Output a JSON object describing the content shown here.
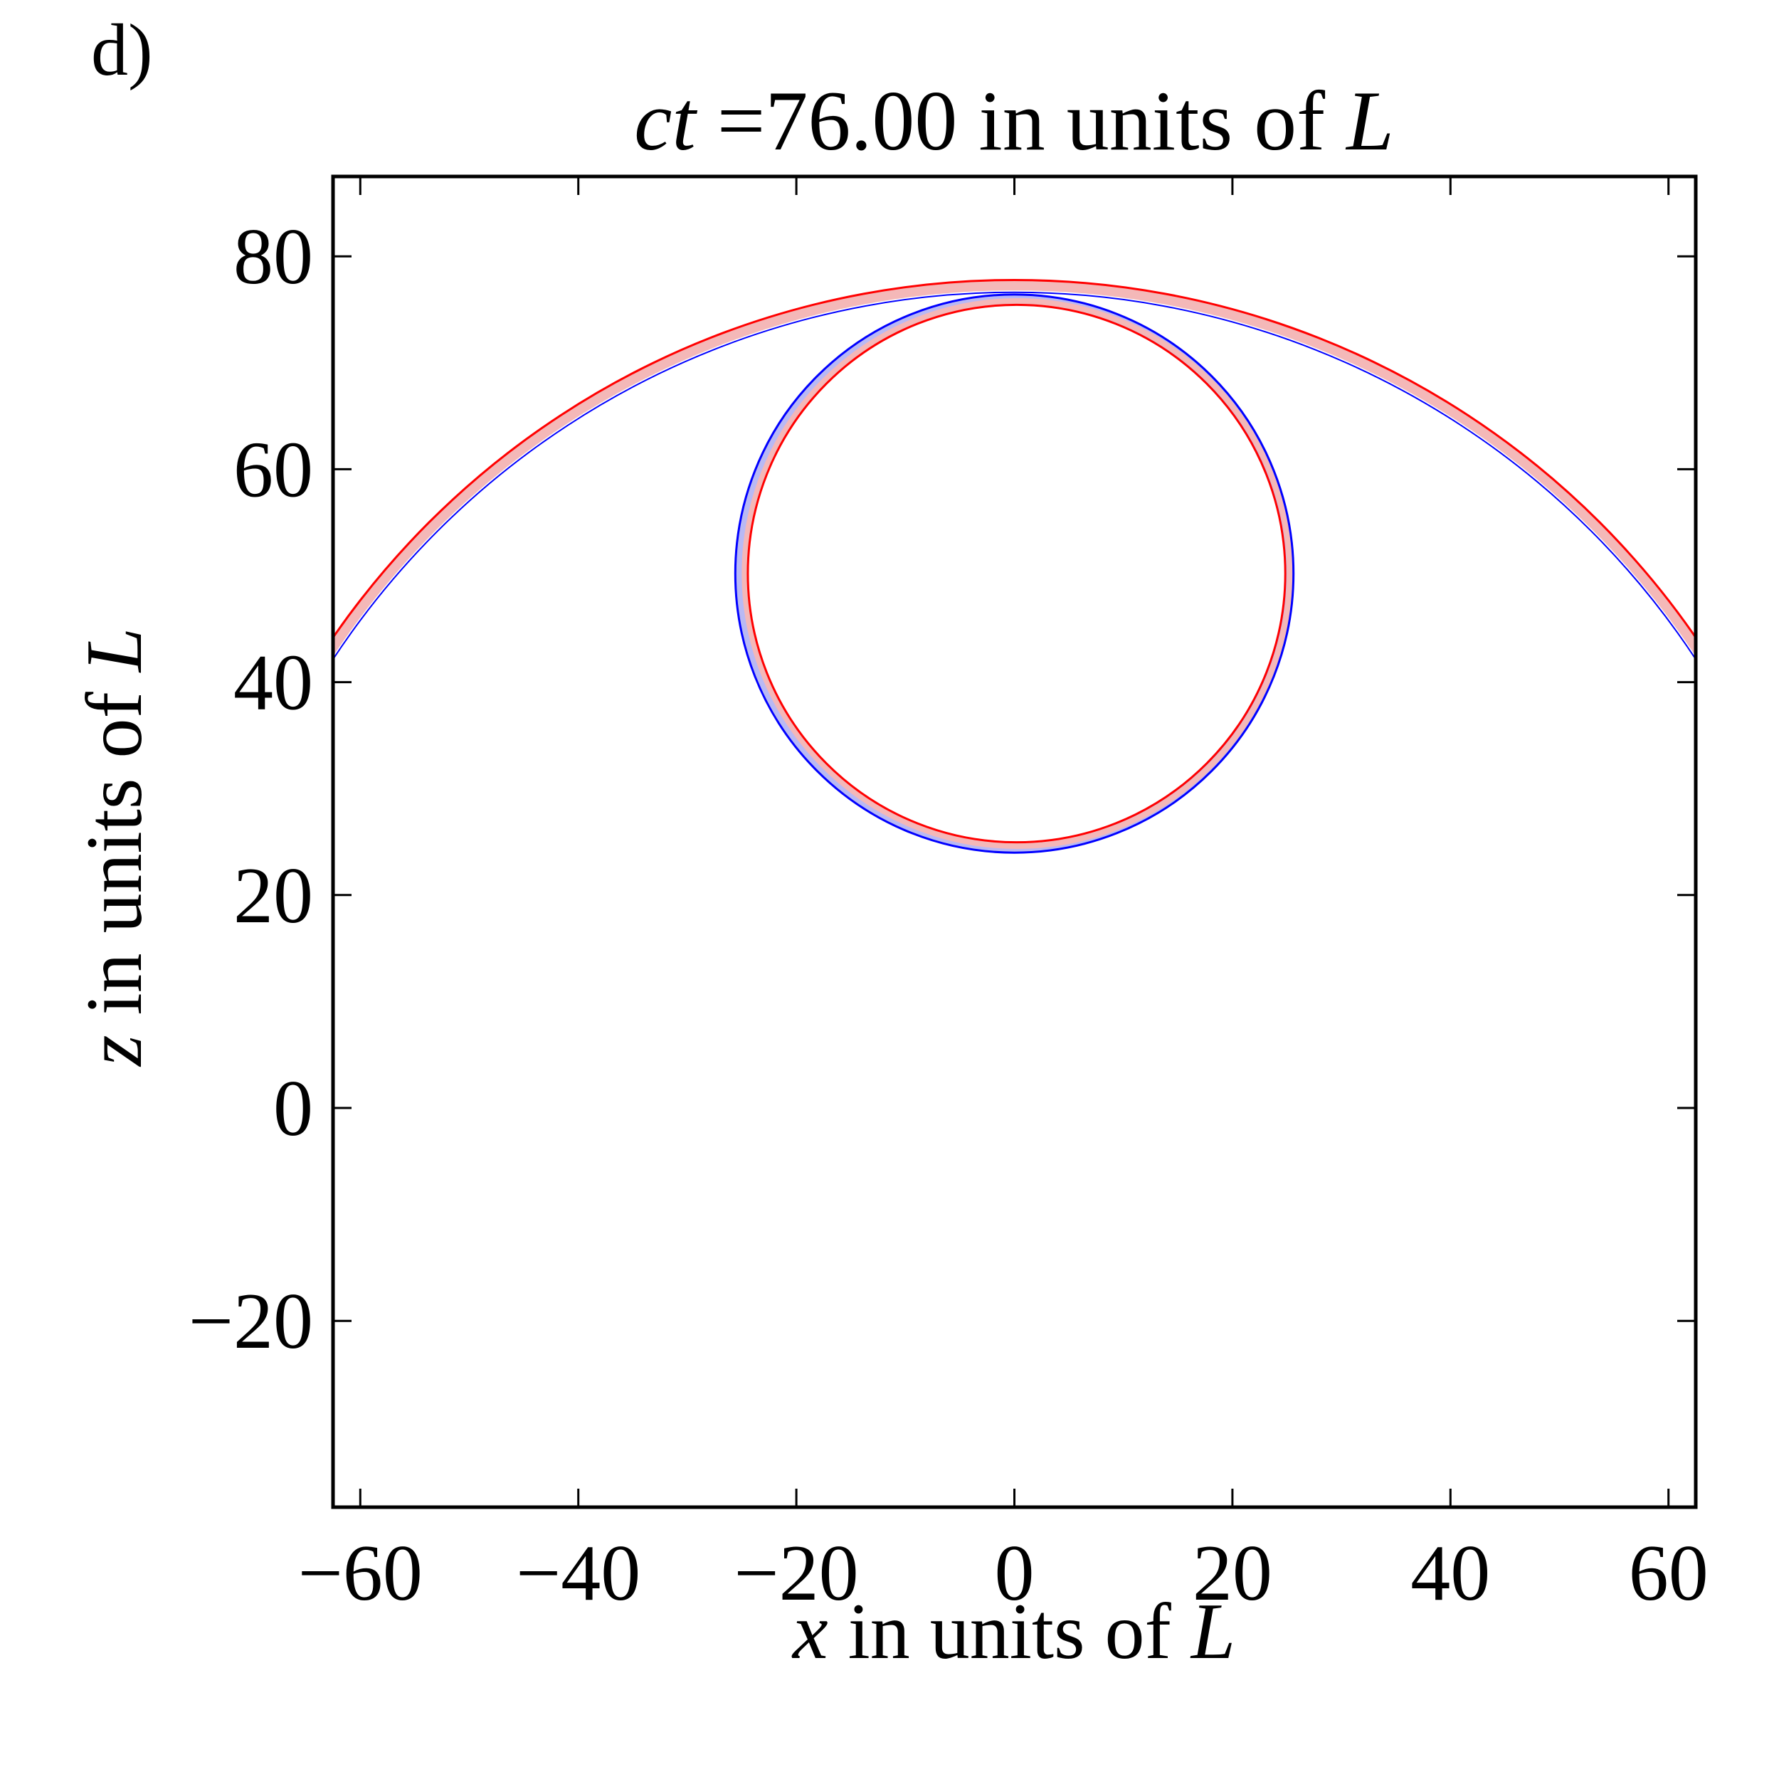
{
  "panel_label": "d)",
  "chart_data": {
    "type": "line",
    "title": {
      "var": "ct",
      "rest": " =76.00 in units of ",
      "unit": "L"
    },
    "xlabel": {
      "var": "x",
      "rest": " in units of ",
      "unit": "L"
    },
    "ylabel": {
      "var": "z",
      "rest": " in units of ",
      "unit": "L"
    },
    "xlim": [
      -62.5,
      62.5
    ],
    "ylim": [
      -37.5,
      87.5
    ],
    "xticks": [
      -60,
      -40,
      -20,
      0,
      20,
      40,
      60
    ],
    "yticks": [
      -20,
      0,
      20,
      40,
      60,
      80
    ],
    "xtick_labels": [
      "−60",
      "−40",
      "−20",
      "0",
      "20",
      "40",
      "60"
    ],
    "ytick_labels": [
      "−20",
      "0",
      "20",
      "40",
      "60",
      "80"
    ],
    "grid": false,
    "colors": {
      "red": "#ff0000",
      "blue": "#0000ff",
      "light_red": "#f4b8b8",
      "light_blue": "#b9b9f4"
    },
    "shapes": [
      {
        "name": "outer wavefront",
        "kind": "arc",
        "center": [
          0,
          0
        ],
        "radius": 76.0
      },
      {
        "name": "inner wavefront",
        "kind": "circle",
        "center": [
          0,
          50.2
        ],
        "radius": 25.6
      }
    ]
  }
}
